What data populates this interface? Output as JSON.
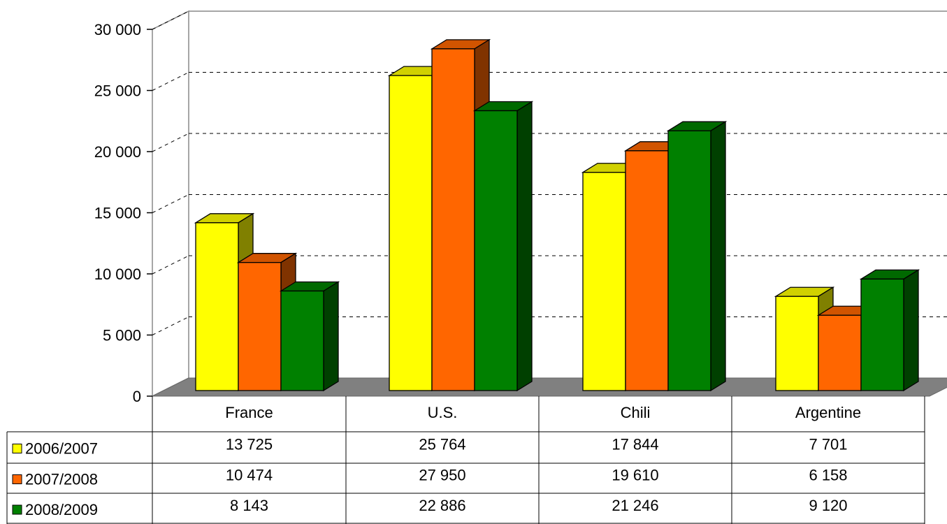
{
  "chart_data": {
    "type": "bar",
    "style": "3d-clustered-column-with-data-table",
    "title": "",
    "xlabel": "",
    "ylabel": "",
    "ylim": [
      0,
      30000
    ],
    "yticks": [
      "0",
      "5 000",
      "10 000",
      "15 000",
      "20 000",
      "25 000",
      "30 000"
    ],
    "grid": "dashed horizontal",
    "legend": "data-table-left",
    "categories": [
      "France",
      "U.S.",
      "Chili",
      "Argentine"
    ],
    "series": [
      {
        "name": "2006/2007",
        "color": "#ffff00",
        "values": [
          13725,
          25764,
          17844,
          7701
        ],
        "labels": [
          "13 725",
          "25 764",
          "17 844",
          "7 701"
        ]
      },
      {
        "name": "2007/2008",
        "color": "#ff6600",
        "values": [
          10474,
          27950,
          19610,
          6158
        ],
        "labels": [
          "10 474",
          "27 950",
          "19 610",
          "6 158"
        ]
      },
      {
        "name": "2008/2009",
        "color": "#008000",
        "values": [
          8143,
          22886,
          21246,
          9120
        ],
        "labels": [
          "8 143",
          "22 886",
          "21 246",
          "9 120"
        ]
      }
    ]
  }
}
